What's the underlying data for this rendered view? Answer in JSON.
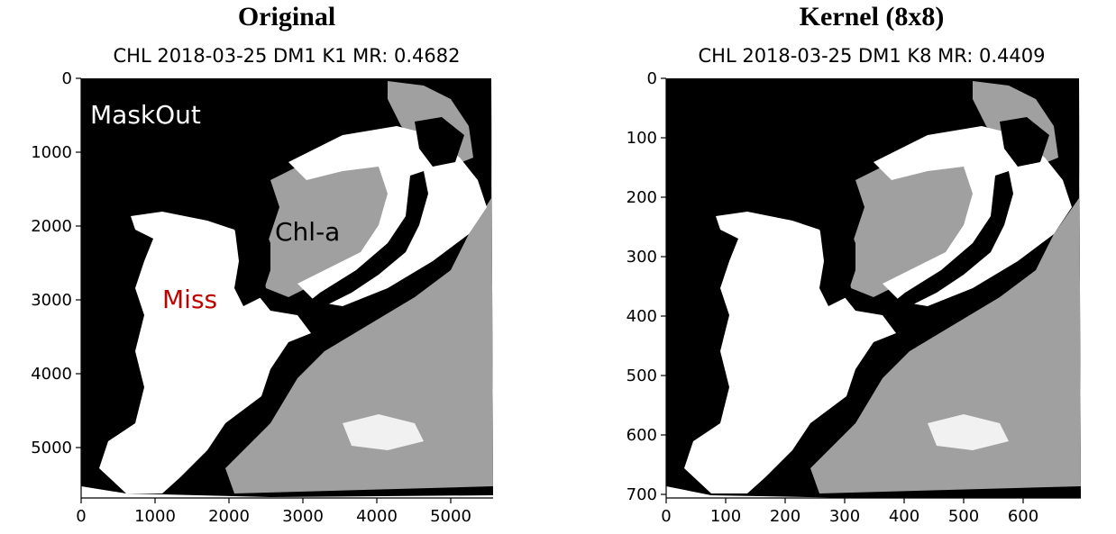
{
  "panels": [
    {
      "heading": "Original",
      "subtitle": "CHL 2018-03-25 DM1 K1 MR: 0.4682",
      "x_ticks": [
        "0",
        "1000",
        "2000",
        "3000",
        "4000",
        "5000"
      ],
      "y_ticks": [
        "0",
        "1000",
        "2000",
        "3000",
        "4000",
        "5000"
      ],
      "annotations": {
        "maskout": "MaskOut",
        "chla": "Chl-a",
        "miss": "Miss"
      }
    },
    {
      "heading": "Kernel (8x8)",
      "subtitle": "CHL 2018-03-25 DM1 K8 MR: 0.4409",
      "x_ticks": [
        "0",
        "100",
        "200",
        "300",
        "400",
        "500",
        "600"
      ],
      "y_ticks": [
        "0",
        "100",
        "200",
        "300",
        "400",
        "500",
        "600",
        "700"
      ]
    }
  ],
  "colors": {
    "maskout": "#000000",
    "chla": "#a0a0a0",
    "miss": "#ffffff",
    "miss_label": "#c00000"
  }
}
